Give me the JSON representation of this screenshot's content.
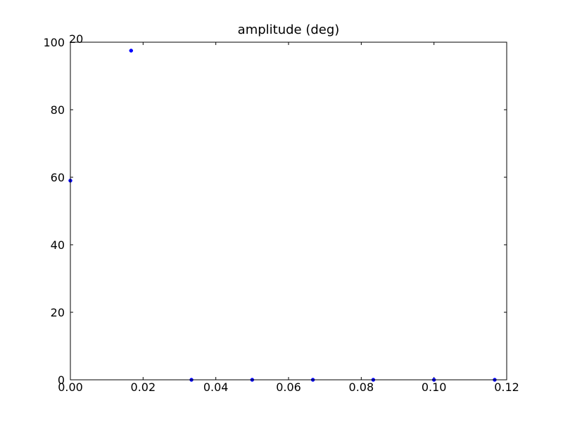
{
  "chart_data": {
    "type": "scatter",
    "title": "amplitude (deg)",
    "xlabel": "",
    "ylabel": "",
    "corner_label": "20",
    "xlim": [
      0,
      0.12
    ],
    "ylim": [
      0,
      100
    ],
    "xticks": [
      0.0,
      0.02,
      0.04,
      0.06,
      0.08,
      0.1,
      0.12
    ],
    "xtick_labels": [
      "0.00",
      "0.02",
      "0.04",
      "0.06",
      "0.08",
      "0.10",
      "0.12"
    ],
    "yticks": [
      0,
      20,
      40,
      60,
      80,
      100
    ],
    "ytick_labels": [
      "0",
      "20",
      "40",
      "60",
      "80",
      "100"
    ],
    "grid": false,
    "series": [
      {
        "color": "#0000ff",
        "x": [
          0.0,
          0.0167,
          0.0333,
          0.05,
          0.0667,
          0.0833,
          0.1,
          0.1167
        ],
        "y": [
          59,
          97.5,
          0,
          0,
          0,
          0,
          0,
          0
        ]
      }
    ]
  }
}
